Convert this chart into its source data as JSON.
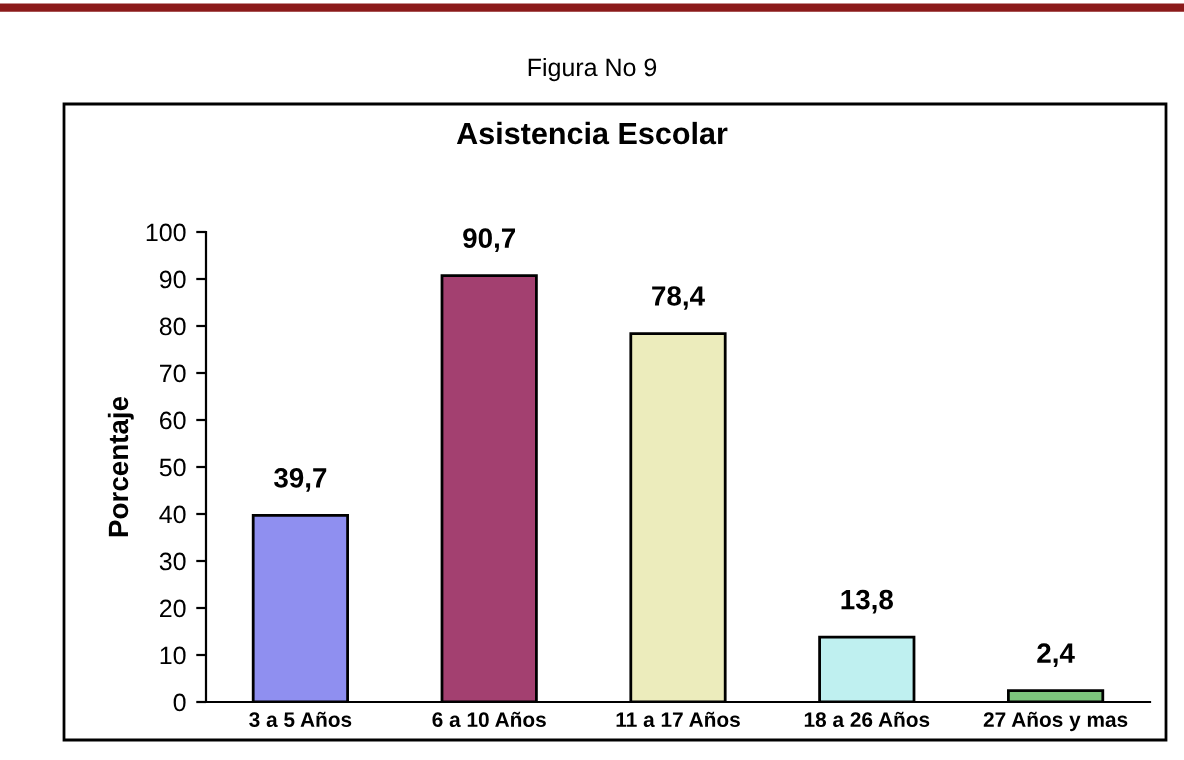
{
  "chart_data": {
    "type": "bar",
    "title": "Asistencia Escolar",
    "ylabel": "Porcentaje",
    "annotations": [
      "Figura No 9"
    ],
    "categories": [
      "3 a 5 Años",
      "6 a 10 Años",
      "11 a 17 Años",
      "18 a 26 Años",
      "27 Años y mas"
    ],
    "values": [
      39.7,
      90.7,
      78.4,
      13.8,
      2.4
    ],
    "value_labels": [
      "39,7",
      "90,7",
      "78,4",
      "13,8",
      "2,4"
    ],
    "colors": [
      "#8f8ff0",
      "#a34070",
      "#ececbc",
      "#bff0f0",
      "#7cc47c"
    ],
    "ylim": [
      0,
      100
    ],
    "yticks": [
      0,
      10,
      20,
      30,
      40,
      50,
      60,
      70,
      80,
      90,
      100
    ],
    "grid": false,
    "legend": false
  }
}
